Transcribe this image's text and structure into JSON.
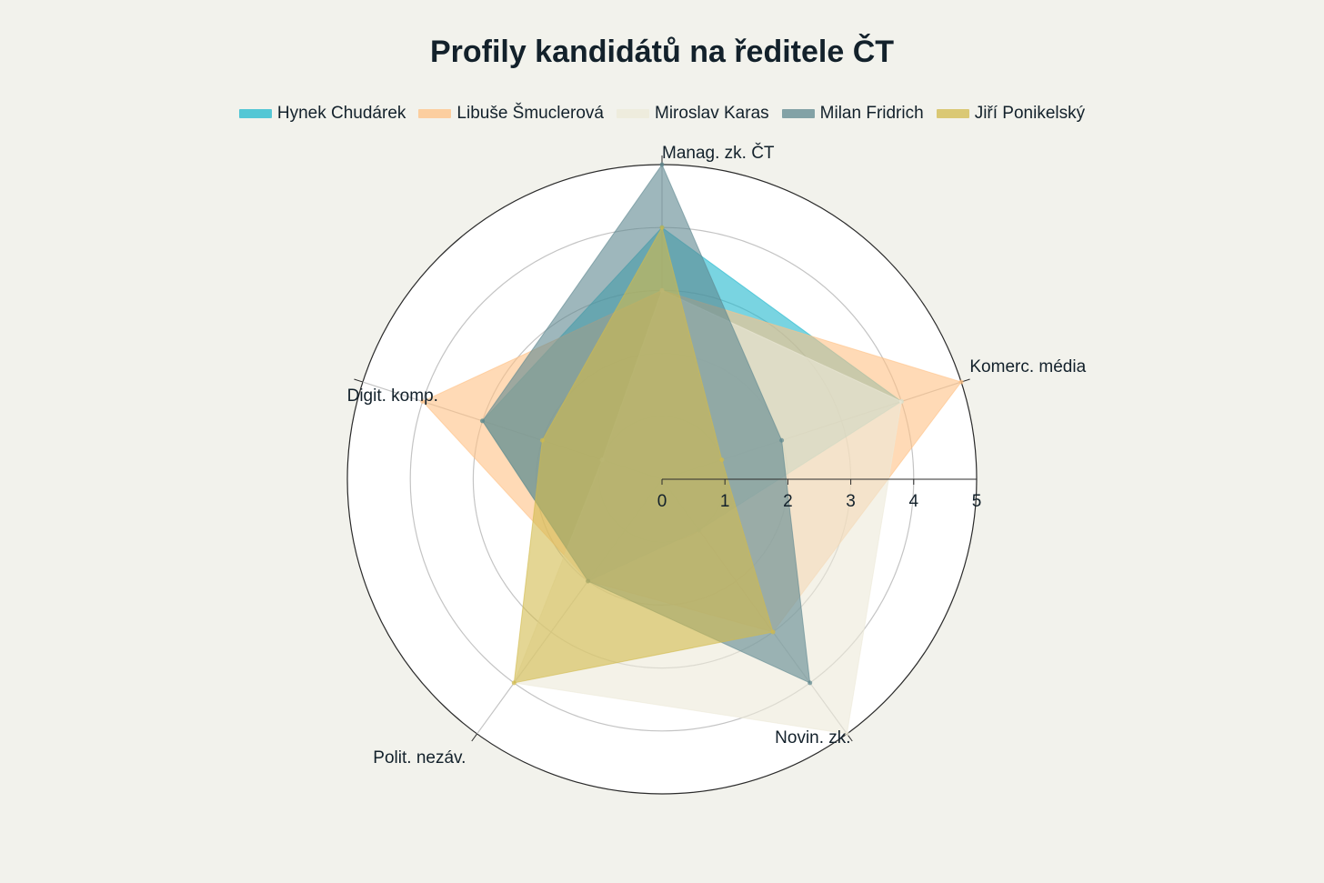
{
  "chart_data": {
    "type": "radar",
    "title": "Profily kandidátů na ředitele ČT",
    "axes": [
      "Manag. zk. ČT",
      "Komerc. média",
      "Novin. zk.",
      "Polit. nezáv.",
      "Digit. komp."
    ],
    "range": [
      0,
      5
    ],
    "ticks": [
      0,
      1,
      2,
      3,
      4,
      5
    ],
    "legend_position": "top",
    "series": [
      {
        "name": "Hynek Chudárek",
        "values": [
          4,
          4,
          1,
          2,
          3
        ],
        "color": "#1fb8cd"
      },
      {
        "name": "Libuše Šmuclerová",
        "values": [
          3,
          5,
          3,
          2,
          4
        ],
        "color": "#ffc185"
      },
      {
        "name": "Miroslav Karas",
        "values": [
          3,
          4,
          5,
          4,
          1
        ],
        "color": "#ece9d8"
      },
      {
        "name": "Milan Fridrich",
        "values": [
          5,
          2,
          4,
          2,
          3
        ],
        "color": "#5d878f"
      },
      {
        "name": "Jiří Ponikelský",
        "values": [
          4,
          1,
          3,
          4,
          2
        ],
        "color": "#d2ba4c"
      }
    ]
  }
}
